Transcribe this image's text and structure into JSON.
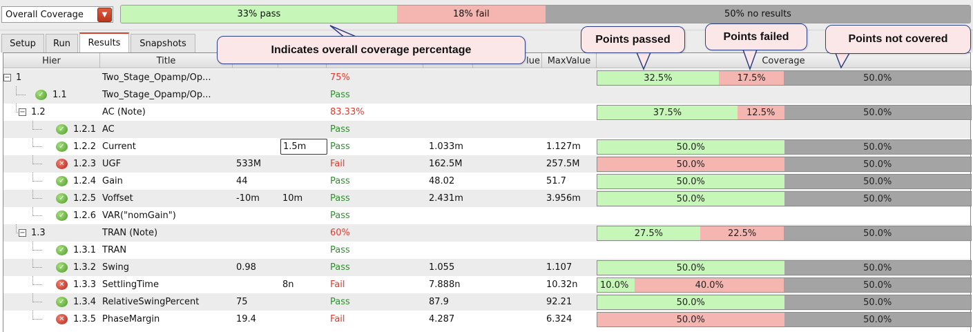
{
  "overall": {
    "select_value": "Overall Coverage",
    "pass_label": "33% pass",
    "fail_label": "18% fail",
    "none_label": "50% no results",
    "pass_fraction": 0.325,
    "fail_fraction": 0.175,
    "none_fraction": 0.5
  },
  "tabs": [
    "Setup",
    "Run",
    "Results",
    "Snapshots"
  ],
  "active_tab": "Results",
  "columns": {
    "hier": "Hier",
    "title": "Title",
    "maxvalue_partial": "lue",
    "maxvalue": "MaxValue",
    "coverage": "Coverage"
  },
  "rows": [
    {
      "hier": "1",
      "title": "Two_Stage_Opamp/Op...",
      "status": "75%",
      "coverage": [
        "32.5%",
        "17.5%",
        "50.0%"
      ],
      "cov_fractions": [
        0.325,
        0.175,
        0.5
      ]
    },
    {
      "hier": "1.1",
      "title": "Two_Stage_Opamp/Op...",
      "status": "Pass"
    },
    {
      "hier": "1.2",
      "title": "AC (Note)",
      "status": "83.33%",
      "coverage": [
        "37.5%",
        "12.5%",
        "50.0%"
      ],
      "cov_fractions": [
        0.375,
        0.125,
        0.5
      ]
    },
    {
      "hier": "1.2.1",
      "title": "AC",
      "status": "Pass"
    },
    {
      "hier": "1.2.2",
      "title": "Current",
      "spec": "1.5m",
      "status": "Pass",
      "min": "1.033m",
      "max": "1.127m",
      "coverage": [
        "50.0%",
        "50.0%"
      ]
    },
    {
      "hier": "1.2.3",
      "title": "UGF",
      "spec": "533M",
      "status": "Fail",
      "min": "162.5M",
      "max": "257.5M",
      "coverage": [
        "50.0%",
        "50.0%"
      ]
    },
    {
      "hier": "1.2.4",
      "title": "Gain",
      "spec": "44",
      "status": "Pass",
      "min": "48.02",
      "max": "51.7",
      "coverage": [
        "50.0%",
        "50.0%"
      ]
    },
    {
      "hier": "1.2.5",
      "title": "Voffset",
      "spec": "-10m",
      "spec2": "10m",
      "status": "Pass",
      "min": "2.431m",
      "max": "3.956m",
      "coverage": [
        "50.0%",
        "50.0%"
      ]
    },
    {
      "hier": "1.2.6",
      "title": "VAR(\"nomGain\")",
      "status": "Pass"
    },
    {
      "hier": "1.3",
      "title": "TRAN (Note)",
      "status": "60%",
      "coverage": [
        "27.5%",
        "22.5%",
        "50.0%"
      ],
      "cov_fractions": [
        0.275,
        0.225,
        0.5
      ]
    },
    {
      "hier": "1.3.1",
      "title": "TRAN",
      "status": "Pass"
    },
    {
      "hier": "1.3.2",
      "title": "Swing",
      "spec": "0.98",
      "status": "Pass",
      "min": "1.055",
      "max": "1.107",
      "coverage": [
        "50.0%",
        "50.0%"
      ]
    },
    {
      "hier": "1.3.3",
      "title": "SettlingTime",
      "spec2": "8n",
      "status": "Fail",
      "min": "7.888n",
      "max": "10.32n",
      "coverage": [
        "10.0%",
        "40.0%",
        "50.0%"
      ],
      "cov_fractions": [
        0.1,
        0.4,
        0.5
      ]
    },
    {
      "hier": "1.3.4",
      "title": "RelativeSwingPercent",
      "spec": "75",
      "status": "Pass",
      "min": "87.9",
      "max": "92.21",
      "coverage": [
        "50.0%",
        "50.0%"
      ]
    },
    {
      "hier": "1.3.5",
      "title": "PhaseMargin",
      "spec": "19.4",
      "status": "Fail",
      "min": "4.287",
      "max": "6.324",
      "coverage": [
        "50.0%",
        "50.0%"
      ]
    }
  ],
  "callouts": {
    "overall": "Indicates overall coverage percentage",
    "passed": "Points passed",
    "failed": "Points failed",
    "not_covered": "Points not covered"
  },
  "colors": {
    "pass": "#c6f7b8",
    "fail": "#f5b6b1",
    "none": "#a4a4a4",
    "pass_text": "#2f8f2f",
    "fail_text": "#e23b2d",
    "callout_border": "#2c3e86",
    "callout_fill": "#fbe7e7"
  },
  "icons": {
    "select_arrow": "chevron-down-icon",
    "pass": "check-circle-icon",
    "fail": "x-circle-icon",
    "expand": "collapse-box-icon"
  }
}
